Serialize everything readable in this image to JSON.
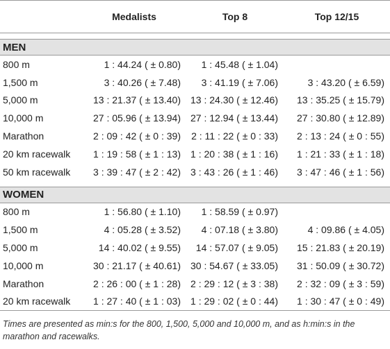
{
  "table": {
    "columns": [
      "Medalists",
      "Top 8",
      "Top 12/15"
    ],
    "sections": [
      {
        "title": "MEN",
        "rows": [
          [
            "800 m",
            "1 : 44.24 ( ± 0.80)",
            "1 : 45.48 ( ± 1.04)",
            null
          ],
          [
            "1,500 m",
            "3 : 40.26 ( ± 7.48)",
            "3 : 41.19 ( ± 7.06)",
            "3 : 43.20 ( ± 6.59)"
          ],
          [
            "5,000 m",
            "13 : 21.37 ( ± 13.40)",
            "13 : 24.30 ( ± 12.46)",
            "13 : 35.25 ( ± 15.79)"
          ],
          [
            "10,000 m",
            "27 : 05.96 ( ± 13.94)",
            "27 : 12.94 ( ± 13.44)",
            "27 : 30.80 ( ± 12.89)"
          ],
          [
            "Marathon",
            "2 : 09 : 42 ( ± 0 : 39)",
            "2 : 11 : 22 ( ± 0 : 33)",
            "2 : 13 : 24 ( ± 0 : 55)"
          ],
          [
            "20 km racewalk",
            "1 : 19 : 58 ( ± 1 : 13)",
            "1 : 20 : 38 ( ± 1 : 16)",
            "1 : 21 : 33 ( ± 1 : 18)"
          ],
          [
            "50 km racewalk",
            "3 : 39 : 47 ( ± 2 : 42)",
            "3 : 43 : 26 ( ± 1 : 46)",
            "3 : 47 : 46 ( ± 1 : 56)"
          ]
        ]
      },
      {
        "title": "WOMEN",
        "rows": [
          [
            "800 m",
            "1 : 56.80 ( ± 1.10)",
            "1 : 58.59 ( ± 0.97)",
            null
          ],
          [
            "1,500 m",
            "4 : 05.28 ( ± 3.52)",
            "4 : 07.18 ( ± 3.80)",
            "4 : 09.86 ( ± 4.05)"
          ],
          [
            "5,000 m",
            "14 : 40.02 ( ± 9.55)",
            "14 : 57.07 ( ± 9.05)",
            "15 : 21.83 ( ± 20.19)"
          ],
          [
            "10,000 m",
            "30 : 21.17 ( ± 40.61)",
            "30 : 54.67 ( ± 33.05)",
            "31 : 50.09 ( ± 30.72)"
          ],
          [
            "Marathon",
            "2 : 26 : 00 ( ± 1 : 28)",
            "2 : 29 : 12 ( ± 3 : 38)",
            "2 : 32 : 09 ( ± 3 : 59)"
          ],
          [
            "20 km racewalk",
            "1 : 27 : 40 ( ± 1 : 03)",
            "1 : 29 : 02 ( ± 0 : 44)",
            "1 : 30 : 47 ( ± 0 : 49)"
          ]
        ]
      }
    ],
    "footnote": "Times are presented as min:s for the 800, 1,500, 5,000 and 10,000 m, and as h:min:s in the marathon and racewalks."
  }
}
